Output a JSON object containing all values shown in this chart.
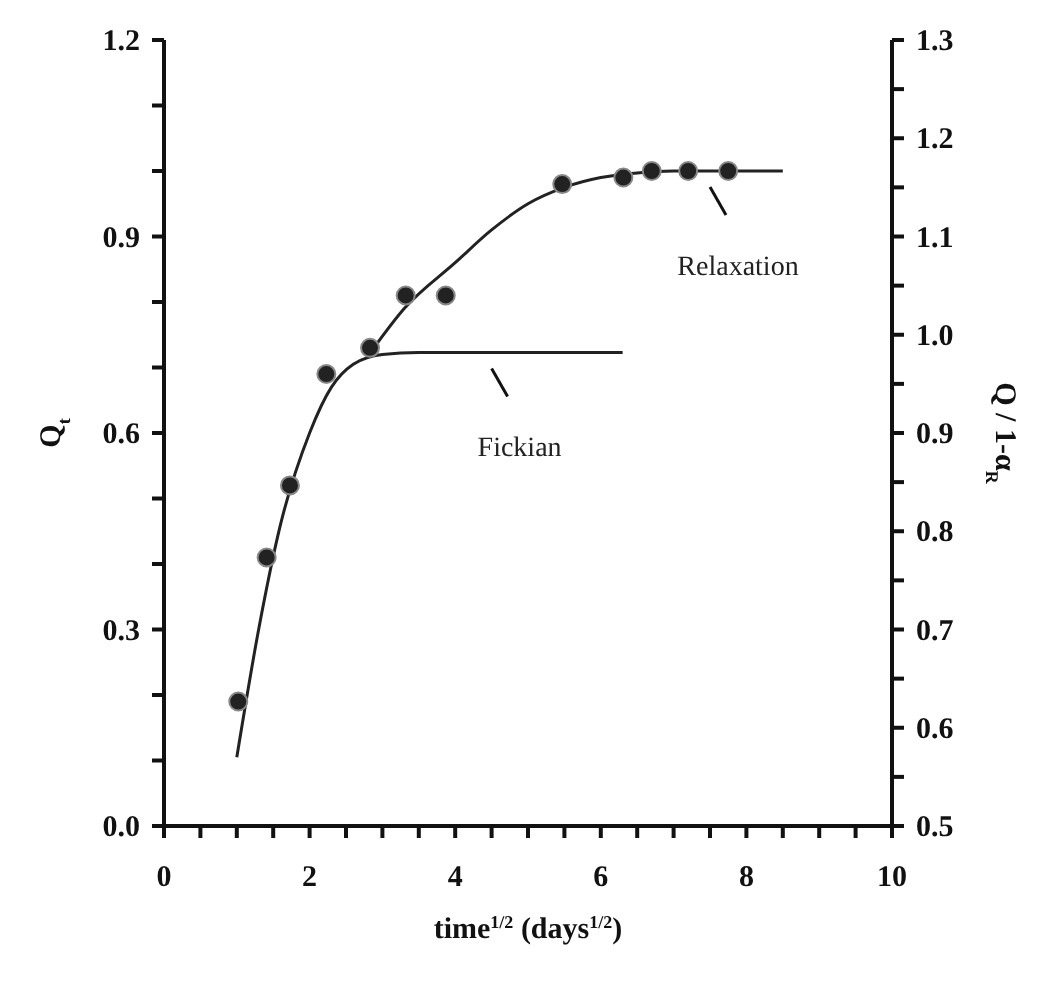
{
  "chart_data": {
    "type": "scatter",
    "xlabel": "time$^{1/2}$ (days$^{1/2}$)",
    "ylabel": "Q$_{t}$",
    "y2label": "Q / 1-α$_{R}$",
    "xlim": [
      0,
      10
    ],
    "xticks": [
      0,
      {
        "value": 0.5,
        "label": null
      },
      {
        "value": 1,
        "label": null
      },
      {
        "value": 1.5,
        "label": null
      },
      2,
      {
        "value": 2.5,
        "label": null
      },
      {
        "value": 3,
        "label": null
      },
      {
        "value": 3.5,
        "label": null
      },
      4,
      {
        "value": 4.5,
        "label": null
      },
      {
        "value": 5,
        "label": null
      },
      {
        "value": 5.5,
        "label": null
      },
      6,
      {
        "value": 6.5,
        "label": null
      },
      {
        "value": 7,
        "label": null
      },
      {
        "value": 7.5,
        "label": null
      },
      8,
      {
        "value": 8.5,
        "label": null
      },
      {
        "value": 9,
        "label": null
      },
      {
        "value": 9.5,
        "label": null
      },
      10
    ],
    "ylim": [
      0,
      1.2
    ],
    "yticks": [
      {
        "value": 0,
        "label": "0.0"
      },
      {
        "value": 0.1,
        "label": null
      },
      {
        "value": 0.2,
        "label": null
      },
      0.3,
      {
        "value": 0.4,
        "label": null
      },
      {
        "value": 0.5,
        "label": null
      },
      0.6,
      {
        "value": 0.7,
        "label": null
      },
      {
        "value": 0.8,
        "label": null
      },
      0.9,
      {
        "value": 1,
        "label": null
      },
      {
        "value": 1.1,
        "label": null
      },
      1.2
    ],
    "y2lim": [
      0.5,
      1.3
    ],
    "y2ticks": [
      0.5,
      {
        "value": 0.55,
        "label": null
      },
      0.6,
      {
        "value": 0.65,
        "label": null
      },
      0.7,
      {
        "value": 0.75,
        "label": null
      },
      0.8,
      {
        "value": 0.85,
        "label": null
      },
      0.9,
      {
        "value": 0.95,
        "label": null
      },
      {
        "value": 1,
        "label": "1.0"
      },
      {
        "value": 1.05,
        "label": null
      },
      1.1,
      {
        "value": 1.15,
        "label": null
      },
      1.2,
      {
        "value": 1.25,
        "label": null
      },
      1.3
    ],
    "series": [
      {
        "marker": "circle",
        "color": "#222222",
        "x": [
          1.02,
          1.41,
          1.73,
          2.23,
          2.83,
          3.32,
          3.87,
          5.47,
          6.31,
          6.7,
          7.2,
          7.75
        ],
        "values": [
          0.19,
          0.41,
          0.52,
          0.69,
          0.73,
          0.81,
          0.81,
          0.98,
          0.99,
          1.0,
          1.0,
          1.0
        ]
      },
      {
        "type": "line",
        "marker": "none",
        "color": "#222222",
        "x": [
          1.0,
          1.3,
          1.6,
          2.0,
          2.3,
          2.6,
          3.0,
          3.5,
          6.3
        ],
        "values": [
          0.105,
          0.3,
          0.46,
          0.6,
          0.67,
          0.705,
          0.72,
          0.723,
          0.723
        ]
      },
      {
        "type": "line",
        "marker": "none",
        "color": "#222222",
        "x": [
          2.85,
          3.3,
          4.0,
          4.5,
          5.0,
          5.5,
          6.0,
          6.5,
          7.0,
          8.5
        ],
        "values": [
          0.725,
          0.79,
          0.86,
          0.91,
          0.95,
          0.975,
          0.99,
          0.997,
          1.0,
          1.0
        ]
      }
    ],
    "annotations": [
      {
        "text": "Fickian",
        "x": 4.5,
        "y": 0.723
      },
      {
        "text": "Relaxation",
        "x": 7.5,
        "y": 1.0
      }
    ]
  }
}
